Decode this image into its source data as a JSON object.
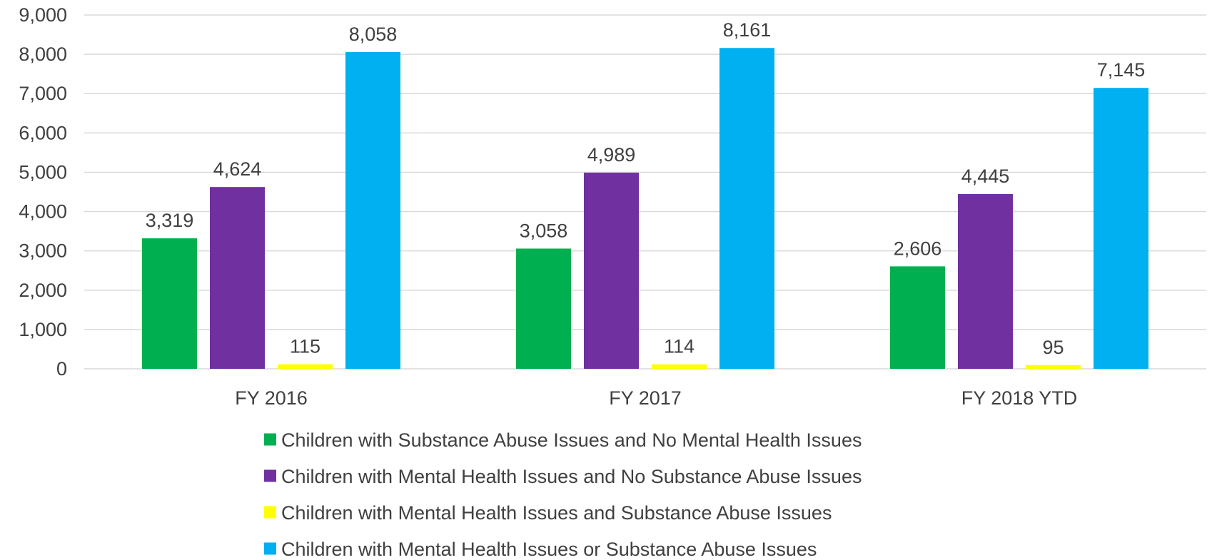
{
  "chart_data": {
    "type": "bar",
    "categories": [
      "FY 2016",
      "FY 2017",
      "FY 2018 YTD"
    ],
    "series": [
      {
        "name": "Children with Substance Abuse Issues and No Mental Health Issues",
        "values": [
          3319,
          3058,
          2606
        ],
        "labels": [
          "3,319",
          "3,058",
          "2,606"
        ],
        "color": "#00b050"
      },
      {
        "name": "Children with Mental Health Issues and No Substance Abuse Issues",
        "values": [
          4624,
          4989,
          4445
        ],
        "labels": [
          "4,624",
          "4,989",
          "4,445"
        ],
        "color": "#7030a0"
      },
      {
        "name": "Children with Mental Health Issues and Substance Abuse Issues",
        "values": [
          115,
          114,
          95
        ],
        "labels": [
          "115",
          "114",
          "95"
        ],
        "color": "#ffff00"
      },
      {
        "name": "Children with Mental Health Issues or Substance Abuse Issues",
        "values": [
          8058,
          8161,
          7145
        ],
        "labels": [
          "8,058",
          "8,161",
          "7,145"
        ],
        "color": "#00b0f0"
      }
    ],
    "yticks": [
      "0",
      "1,000",
      "2,000",
      "3,000",
      "4,000",
      "5,000",
      "6,000",
      "7,000",
      "8,000",
      "9,000"
    ],
    "ylim": [
      0,
      9000
    ],
    "grid": true,
    "legend_position": "bottom"
  }
}
